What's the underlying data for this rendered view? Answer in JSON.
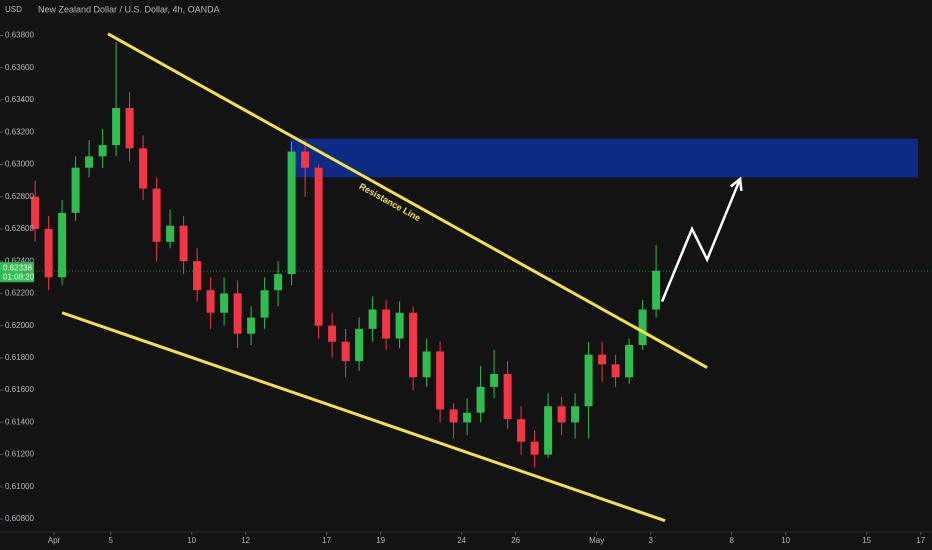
{
  "chart_data": {
    "type": "candlestick",
    "title": "New Zealand Dollar / U.S. Dollar, 4h, OANDA",
    "currency": "USD",
    "up_color": "#2ebd4e",
    "down_color": "#f23645",
    "grid": false,
    "x": [
      1.3,
      1.8,
      2.3,
      2.8,
      3.3,
      3.8,
      4.3,
      4.8,
      5.3,
      5.8,
      6.3,
      6.8,
      7.3,
      7.8,
      8.3,
      8.8,
      9.3,
      9.8,
      10.3,
      10.8,
      11.3,
      11.8,
      12.3,
      12.8,
      13.3,
      13.8,
      14.3,
      14.8,
      15.3,
      15.8,
      16.3,
      16.8,
      17.3,
      17.8,
      18.3,
      18.8,
      19.3,
      19.8,
      20.3,
      20.8,
      21.3,
      21.8,
      22.3,
      22.8,
      23.3,
      23.8,
      24.3
    ],
    "open": [
      0.628,
      0.626,
      0.623,
      0.627,
      0.6298,
      0.6305,
      0.6312,
      0.6335,
      0.631,
      0.6285,
      0.6252,
      0.6262,
      0.624,
      0.6222,
      0.6208,
      0.622,
      0.6195,
      0.6205,
      0.6222,
      0.6232,
      0.6308,
      0.6298,
      0.62,
      0.619,
      0.6178,
      0.6198,
      0.621,
      0.6192,
      0.6208,
      0.6168,
      0.6184,
      0.6148,
      0.614,
      0.6146,
      0.6162,
      0.617,
      0.6142,
      0.6128,
      0.612,
      0.615,
      0.614,
      0.615,
      0.6182,
      0.6176,
      0.6168,
      0.6188,
      0.621
    ],
    "high": [
      0.629,
      0.6268,
      0.6278,
      0.6305,
      0.6315,
      0.6322,
      0.6376,
      0.6345,
      0.6318,
      0.6292,
      0.6272,
      0.6268,
      0.6248,
      0.623,
      0.623,
      0.6228,
      0.6212,
      0.623,
      0.624,
      0.6314,
      0.6315,
      0.63,
      0.6208,
      0.6198,
      0.6205,
      0.6218,
      0.6216,
      0.6215,
      0.6212,
      0.6192,
      0.619,
      0.6152,
      0.6155,
      0.6175,
      0.6185,
      0.6178,
      0.615,
      0.6135,
      0.6158,
      0.6156,
      0.6158,
      0.619,
      0.619,
      0.6182,
      0.6192,
      0.6216,
      0.625
    ],
    "low": [
      0.6252,
      0.6222,
      0.6225,
      0.6265,
      0.6292,
      0.6298,
      0.6305,
      0.6302,
      0.6278,
      0.624,
      0.6248,
      0.6232,
      0.6215,
      0.6198,
      0.62,
      0.6186,
      0.6188,
      0.6198,
      0.6212,
      0.6225,
      0.628,
      0.6192,
      0.618,
      0.6168,
      0.6172,
      0.619,
      0.6185,
      0.6186,
      0.616,
      0.6162,
      0.614,
      0.613,
      0.6132,
      0.614,
      0.6155,
      0.6136,
      0.612,
      0.6112,
      0.6118,
      0.6132,
      0.613,
      0.613,
      0.6165,
      0.6162,
      0.6164,
      0.6185,
      0.6205
    ],
    "close": [
      0.626,
      0.623,
      0.627,
      0.6298,
      0.6305,
      0.6312,
      0.6335,
      0.631,
      0.6285,
      0.6252,
      0.6262,
      0.624,
      0.6222,
      0.6208,
      0.622,
      0.6195,
      0.6205,
      0.6222,
      0.6232,
      0.6308,
      0.6298,
      0.62,
      0.619,
      0.6178,
      0.6198,
      0.621,
      0.6192,
      0.6208,
      0.6168,
      0.6184,
      0.6148,
      0.614,
      0.6146,
      0.6162,
      0.617,
      0.6142,
      0.6128,
      0.612,
      0.615,
      0.614,
      0.615,
      0.6182,
      0.6176,
      0.6168,
      0.6188,
      0.621,
      0.6234
    ],
    "xlim": [
      0,
      34.5
    ],
    "xticks": [
      {
        "value": 2,
        "label": "Apr"
      },
      {
        "value": 4.1,
        "label": "5"
      },
      {
        "value": 7.1,
        "label": "10"
      },
      {
        "value": 9.1,
        "label": "12"
      },
      {
        "value": 12.1,
        "label": "17"
      },
      {
        "value": 14.1,
        "label": "19"
      },
      {
        "value": 17.1,
        "label": "24"
      },
      {
        "value": 19.1,
        "label": "26"
      },
      {
        "value": 22.1,
        "label": "May"
      },
      {
        "value": 24.1,
        "label": "3"
      },
      {
        "value": 27.1,
        "label": "8"
      },
      {
        "value": 29.1,
        "label": "10"
      },
      {
        "value": 32.1,
        "label": "15"
      },
      {
        "value": 34.1,
        "label": "17"
      }
    ],
    "ylim": [
      0.6072,
      0.6402
    ],
    "yticks": [
      {
        "value": 0.608,
        "label": "0.60800"
      },
      {
        "value": 0.61,
        "label": "0.61000"
      },
      {
        "value": 0.612,
        "label": "0.61200"
      },
      {
        "value": 0.614,
        "label": "0.61400"
      },
      {
        "value": 0.616,
        "label": "0.61600"
      },
      {
        "value": 0.618,
        "label": "0.61800"
      },
      {
        "value": 0.62,
        "label": "0.62000"
      },
      {
        "value": 0.622,
        "label": "0.62200"
      },
      {
        "value": 0.624,
        "label": "0.62400"
      },
      {
        "value": 0.626,
        "label": "0.62600"
      },
      {
        "value": 0.628,
        "label": "0.62800"
      },
      {
        "value": 0.63,
        "label": "0.63000"
      },
      {
        "value": 0.632,
        "label": "0.63200"
      },
      {
        "value": 0.634,
        "label": "0.63400"
      },
      {
        "value": 0.636,
        "label": "0.63600"
      },
      {
        "value": 0.638,
        "label": "0.63800"
      }
    ],
    "last_price": 0.62338,
    "countdown": "01:08:20",
    "zone": {
      "x": [
        10.74,
        34.0
      ],
      "y": [
        0.6292,
        0.6316
      ],
      "color": "#0d2a85"
    },
    "lines": [
      {
        "points": [
          [
            4.0,
            0.6381
          ],
          [
            26.19,
            0.6174
          ]
        ],
        "color": "#f5e04a",
        "label": "Resistance Line"
      },
      {
        "points": [
          [
            2.3,
            0.6208
          ],
          [
            24.63,
            0.6079
          ]
        ],
        "color": "#f5e04a"
      }
    ],
    "arrow": {
      "points": [
        [
          24.52,
          0.6215
        ],
        [
          25.63,
          0.626
        ],
        [
          26.19,
          0.6241
        ],
        [
          27.41,
          0.6291
        ]
      ],
      "color": "#ffffff"
    }
  }
}
